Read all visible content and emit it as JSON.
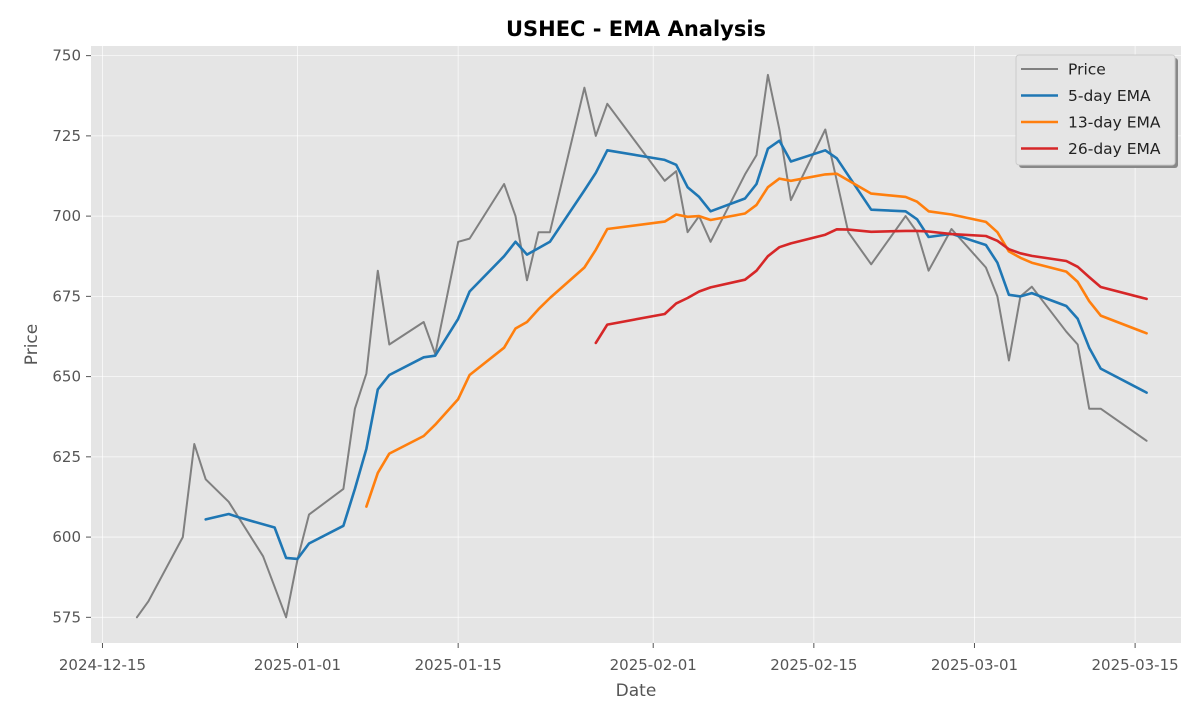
{
  "chart_data": {
    "type": "line",
    "title": "USHEC - EMA Analysis",
    "xlabel": "Date",
    "ylabel": "Price",
    "xlim": [
      "2024-12-14",
      "2025-03-19"
    ],
    "ylim": [
      567,
      753
    ],
    "x_ticks": [
      "2024-12-15",
      "2025-01-01",
      "2025-01-15",
      "2025-02-01",
      "2025-02-15",
      "2025-03-01",
      "2025-03-15"
    ],
    "y_ticks": [
      575,
      600,
      625,
      650,
      675,
      700,
      725,
      750
    ],
    "grid": true,
    "legend_position": "top-right",
    "colors": {
      "background": "#e5e5e5",
      "grid": "#ffffff"
    },
    "series": [
      {
        "name": "Price",
        "color": "#808080",
        "x": [
          "2024-12-18",
          "2024-12-19",
          "2024-12-22",
          "2024-12-23",
          "2024-12-24",
          "2024-12-26",
          "2024-12-29",
          "2024-12-31",
          "2025-01-01",
          "2025-01-02",
          "2025-01-05",
          "2025-01-06",
          "2025-01-07",
          "2025-01-08",
          "2025-01-09",
          "2025-01-12",
          "2025-01-13",
          "2025-01-15",
          "2025-01-16",
          "2025-01-19",
          "2025-01-20",
          "2025-01-21",
          "2025-01-22",
          "2025-01-23",
          "2025-01-26",
          "2025-01-27",
          "2025-01-28",
          "2025-02-02",
          "2025-02-03",
          "2025-02-04",
          "2025-02-05",
          "2025-02-06",
          "2025-02-09",
          "2025-02-10",
          "2025-02-11",
          "2025-02-12",
          "2025-02-13",
          "2025-02-16",
          "2025-02-17",
          "2025-02-18",
          "2025-02-20",
          "2025-02-23",
          "2025-02-24",
          "2025-02-25",
          "2025-02-27",
          "2025-03-02",
          "2025-03-03",
          "2025-03-04",
          "2025-03-05",
          "2025-03-06",
          "2025-03-09",
          "2025-03-10",
          "2025-03-11",
          "2025-03-12",
          "2025-03-16"
        ],
        "values": [
          575,
          580,
          600,
          629,
          618,
          611,
          594,
          575,
          593,
          607,
          615,
          640,
          651,
          683,
          660,
          667,
          657,
          692,
          693,
          710,
          700,
          680,
          695,
          695,
          740,
          725,
          735,
          711,
          714,
          695,
          700,
          692,
          713,
          719,
          744,
          727,
          705,
          727,
          711,
          695,
          685,
          700,
          695,
          683,
          696,
          684,
          675,
          655,
          675,
          678,
          664,
          660,
          640,
          640,
          630
        ]
      },
      {
        "name": "5-day EMA",
        "color": "#1f77b4",
        "x": [
          "2024-12-24",
          "2024-12-26",
          "2024-12-27",
          "2024-12-30",
          "2024-12-31",
          "2025-01-01",
          "2025-01-02",
          "2025-01-05",
          "2025-01-06",
          "2025-01-07",
          "2025-01-08",
          "2025-01-09",
          "2025-01-12",
          "2025-01-13",
          "2025-01-15",
          "2025-01-16",
          "2025-01-19",
          "2025-01-20",
          "2025-01-21",
          "2025-01-23",
          "2025-01-26",
          "2025-01-27",
          "2025-01-28",
          "2025-02-02",
          "2025-02-03",
          "2025-02-04",
          "2025-02-05",
          "2025-02-06",
          "2025-02-09",
          "2025-02-10",
          "2025-02-11",
          "2025-02-12",
          "2025-02-13",
          "2025-02-16",
          "2025-02-17",
          "2025-02-20",
          "2025-02-23",
          "2025-02-24",
          "2025-02-25",
          "2025-02-27",
          "2025-03-02",
          "2025-03-03",
          "2025-03-04",
          "2025-03-05",
          "2025-03-06",
          "2025-03-09",
          "2025-03-10",
          "2025-03-11",
          "2025-03-12",
          "2025-03-16"
        ],
        "values": [
          605.5,
          607.2,
          606,
          603,
          593.5,
          593.2,
          598,
          603.5,
          615,
          627.5,
          646,
          650.5,
          656,
          656.5,
          668,
          676.5,
          687.5,
          692,
          688,
          692,
          708,
          713.5,
          720.5,
          717.5,
          716,
          709,
          706,
          701.5,
          705.5,
          710,
          721,
          723.5,
          717,
          720.5,
          718,
          702,
          701.5,
          699,
          693.5,
          694.5,
          691,
          685.5,
          675.5,
          675,
          676,
          672,
          668,
          659,
          652.5,
          645
        ]
      },
      {
        "name": "13-day EMA",
        "color": "#ff7f0e",
        "x": [
          "2025-01-07",
          "2025-01-08",
          "2025-01-09",
          "2025-01-12",
          "2025-01-13",
          "2025-01-15",
          "2025-01-16",
          "2025-01-19",
          "2025-01-20",
          "2025-01-21",
          "2025-01-22",
          "2025-01-23",
          "2025-01-26",
          "2025-01-27",
          "2025-01-28",
          "2025-02-02",
          "2025-02-03",
          "2025-02-04",
          "2025-02-05",
          "2025-02-06",
          "2025-02-09",
          "2025-02-10",
          "2025-02-11",
          "2025-02-12",
          "2025-02-13",
          "2025-02-16",
          "2025-02-17",
          "2025-02-20",
          "2025-02-23",
          "2025-02-24",
          "2025-02-25",
          "2025-02-27",
          "2025-03-02",
          "2025-03-03",
          "2025-03-04",
          "2025-03-05",
          "2025-03-06",
          "2025-03-09",
          "2025-03-10",
          "2025-03-11",
          "2025-03-12",
          "2025-03-16"
        ],
        "values": [
          609.5,
          620,
          626,
          631.5,
          635,
          643,
          650.5,
          659,
          665,
          667,
          671,
          674.5,
          684,
          689.5,
          696,
          698.3,
          700.5,
          699.8,
          700,
          698.8,
          700.8,
          703.5,
          709,
          711.7,
          711,
          713,
          713.2,
          707,
          706,
          704.5,
          701.5,
          700.5,
          698.2,
          695,
          689,
          687,
          685.5,
          682.7,
          679.5,
          673.5,
          669,
          663.5
        ]
      },
      {
        "name": "26-day EMA",
        "color": "#d62728",
        "x": [
          "2025-01-27",
          "2025-01-28",
          "2025-02-02",
          "2025-02-03",
          "2025-02-04",
          "2025-02-05",
          "2025-02-06",
          "2025-02-09",
          "2025-02-10",
          "2025-02-11",
          "2025-02-12",
          "2025-02-13",
          "2025-02-16",
          "2025-02-17",
          "2025-02-18",
          "2025-02-20",
          "2025-02-23",
          "2025-02-24",
          "2025-02-25",
          "2025-02-27",
          "2025-03-02",
          "2025-03-03",
          "2025-03-04",
          "2025-03-05",
          "2025-03-06",
          "2025-03-09",
          "2025-03-10",
          "2025-03-11",
          "2025-03-12",
          "2025-03-16"
        ],
        "values": [
          660.5,
          666.2,
          669.5,
          672.8,
          674.5,
          676.5,
          677.8,
          680.2,
          683,
          687.5,
          690.3,
          691.5,
          694.2,
          695.9,
          695.8,
          695.1,
          695.4,
          695.4,
          695.2,
          694.4,
          693.8,
          692.3,
          689.7,
          688.4,
          687.6,
          686,
          684.2,
          681,
          677.9,
          674.2
        ]
      }
    ]
  }
}
